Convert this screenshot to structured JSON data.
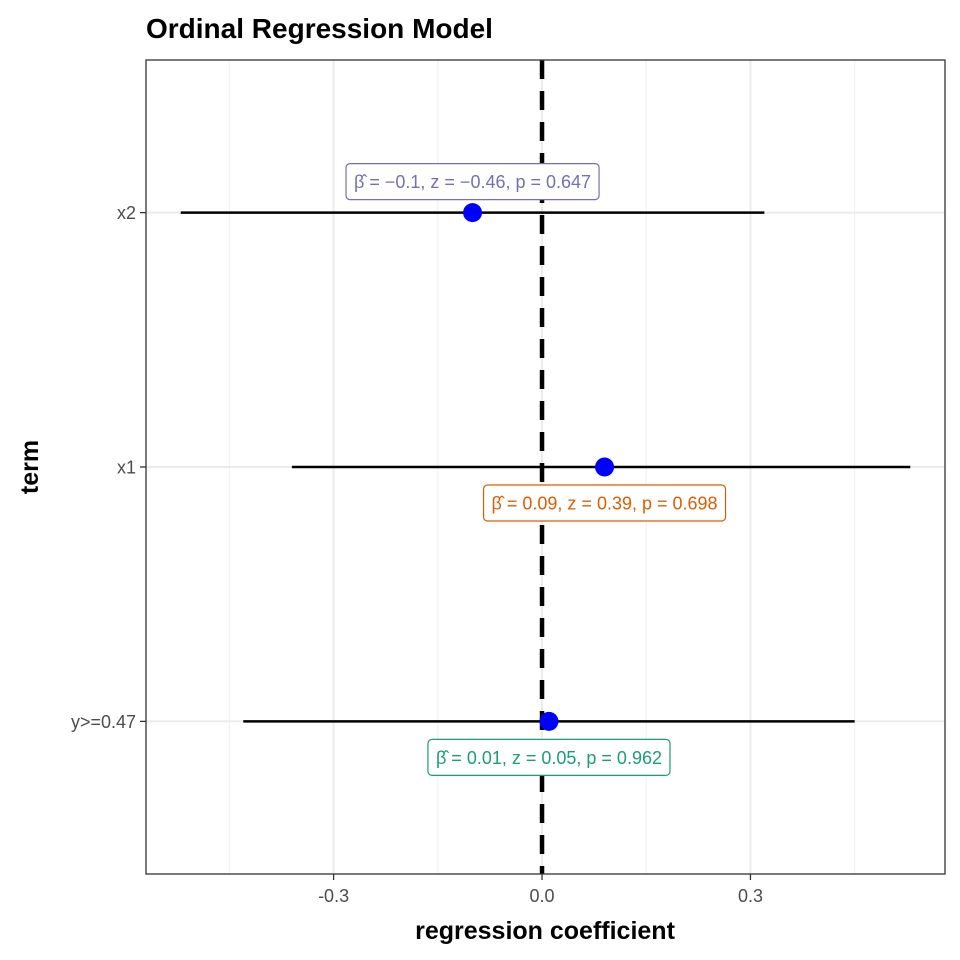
{
  "chart_data": {
    "type": "scatter",
    "title": "Ordinal Regression Model",
    "xlabel": "regression coefficient",
    "ylabel": "term",
    "xlim": [
      -0.57,
      0.58
    ],
    "x_ticks": [
      -0.3,
      0.0,
      0.3
    ],
    "x_tick_labels": [
      "-0.3",
      "0.0",
      "0.3"
    ],
    "reference_line": 0,
    "grid": true,
    "terms": [
      {
        "term": "x2",
        "estimate": -0.1,
        "conf_low": -0.52,
        "conf_high": 0.32,
        "label": "β̂ = −0.1,  z = −0.46,  p = 0.647",
        "label_color": "#7570b3",
        "label_position": "above"
      },
      {
        "term": "x1",
        "estimate": 0.09,
        "conf_low": -0.36,
        "conf_high": 0.53,
        "label": "β̂ = 0.09,  z = 0.39,  p = 0.698",
        "label_color": "#d95f02",
        "label_position": "below"
      },
      {
        "term": "y>=0.47",
        "estimate": 0.01,
        "conf_low": -0.43,
        "conf_high": 0.45,
        "label": "β̂ = 0.01,  z = 0.05,  p = 0.962",
        "label_color": "#1b9e77",
        "label_position": "below"
      }
    ],
    "point_color": "#0000ff",
    "line_color": "#000000"
  }
}
